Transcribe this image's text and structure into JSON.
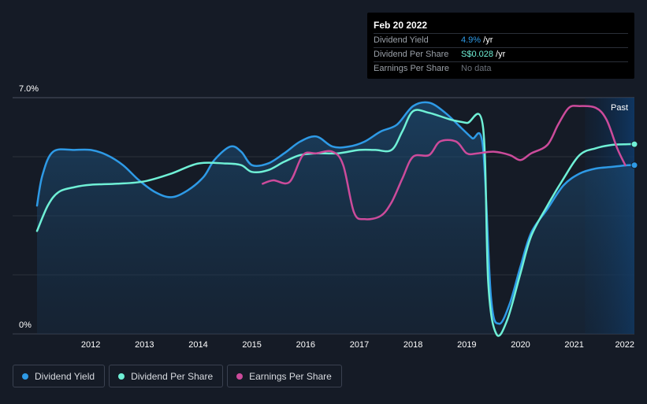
{
  "chart_data": {
    "type": "line",
    "title": "",
    "ylim": [
      0,
      7.0
    ],
    "y_tick_labels": [
      "7.0%",
      "0%"
    ],
    "x_tick_labels": [
      "2012",
      "2013",
      "2014",
      "2015",
      "2016",
      "2017",
      "2018",
      "2019",
      "2020",
      "2021",
      "2022"
    ],
    "xlim": [
      2011.0,
      2022.12
    ],
    "past_label": "Past",
    "past_start": 2021.2,
    "series": [
      {
        "name": "Dividend Yield",
        "color": "#2e9ae6",
        "filled": true,
        "points": [
          [
            2011.0,
            3.8
          ],
          [
            2011.1,
            4.7
          ],
          [
            2011.3,
            5.4
          ],
          [
            2011.7,
            5.45
          ],
          [
            2012.0,
            5.45
          ],
          [
            2012.3,
            5.3
          ],
          [
            2012.6,
            5.0
          ],
          [
            2012.9,
            4.55
          ],
          [
            2013.2,
            4.2
          ],
          [
            2013.5,
            4.05
          ],
          [
            2013.8,
            4.25
          ],
          [
            2014.1,
            4.65
          ],
          [
            2014.3,
            5.15
          ],
          [
            2014.6,
            5.55
          ],
          [
            2014.8,
            5.4
          ],
          [
            2015.0,
            5.0
          ],
          [
            2015.3,
            5.05
          ],
          [
            2015.6,
            5.35
          ],
          [
            2015.9,
            5.7
          ],
          [
            2016.2,
            5.85
          ],
          [
            2016.5,
            5.55
          ],
          [
            2016.8,
            5.55
          ],
          [
            2017.1,
            5.7
          ],
          [
            2017.4,
            6.0
          ],
          [
            2017.7,
            6.2
          ],
          [
            2018.0,
            6.75
          ],
          [
            2018.3,
            6.85
          ],
          [
            2018.6,
            6.55
          ],
          [
            2018.9,
            6.1
          ],
          [
            2019.1,
            5.8
          ],
          [
            2019.3,
            5.55
          ],
          [
            2019.45,
            1.1
          ],
          [
            2019.6,
            0.3
          ],
          [
            2019.8,
            0.9
          ],
          [
            2020.0,
            2.0
          ],
          [
            2020.2,
            3.0
          ],
          [
            2020.5,
            3.7
          ],
          [
            2020.8,
            4.4
          ],
          [
            2021.1,
            4.75
          ],
          [
            2021.4,
            4.9
          ],
          [
            2021.7,
            4.95
          ],
          [
            2022.0,
            5.0
          ],
          [
            2022.12,
            5.0
          ]
        ],
        "end_marker": true
      },
      {
        "name": "Dividend Per Share",
        "color": "#6ff0d6",
        "filled": false,
        "points": [
          [
            2011.0,
            3.05
          ],
          [
            2011.2,
            3.8
          ],
          [
            2011.4,
            4.2
          ],
          [
            2011.7,
            4.35
          ],
          [
            2012.0,
            4.42
          ],
          [
            2012.5,
            4.45
          ],
          [
            2013.0,
            4.52
          ],
          [
            2013.5,
            4.75
          ],
          [
            2014.0,
            5.05
          ],
          [
            2014.5,
            5.05
          ],
          [
            2014.8,
            5.0
          ],
          [
            2015.0,
            4.8
          ],
          [
            2015.3,
            4.85
          ],
          [
            2015.6,
            5.1
          ],
          [
            2015.9,
            5.3
          ],
          [
            2016.2,
            5.35
          ],
          [
            2016.6,
            5.35
          ],
          [
            2017.0,
            5.45
          ],
          [
            2017.3,
            5.45
          ],
          [
            2017.6,
            5.45
          ],
          [
            2017.8,
            6.0
          ],
          [
            2018.0,
            6.6
          ],
          [
            2018.3,
            6.55
          ],
          [
            2018.7,
            6.35
          ],
          [
            2019.0,
            6.25
          ],
          [
            2019.3,
            6.15
          ],
          [
            2019.4,
            1.5
          ],
          [
            2019.55,
            0.0
          ],
          [
            2019.75,
            0.4
          ],
          [
            2020.0,
            1.8
          ],
          [
            2020.2,
            2.9
          ],
          [
            2020.5,
            3.8
          ],
          [
            2020.8,
            4.6
          ],
          [
            2021.1,
            5.3
          ],
          [
            2021.4,
            5.5
          ],
          [
            2021.7,
            5.6
          ],
          [
            2022.0,
            5.62
          ],
          [
            2022.12,
            5.62
          ]
        ],
        "end_marker": true
      },
      {
        "name": "Earnings Per Share",
        "color": "#cc4b9b",
        "filled": false,
        "points": [
          [
            2015.2,
            4.45
          ],
          [
            2015.4,
            4.55
          ],
          [
            2015.7,
            4.5
          ],
          [
            2015.95,
            5.3
          ],
          [
            2016.2,
            5.35
          ],
          [
            2016.5,
            5.4
          ],
          [
            2016.7,
            5.0
          ],
          [
            2016.9,
            3.6
          ],
          [
            2017.1,
            3.4
          ],
          [
            2017.4,
            3.5
          ],
          [
            2017.6,
            3.9
          ],
          [
            2017.8,
            4.6
          ],
          [
            2018.0,
            5.25
          ],
          [
            2018.3,
            5.3
          ],
          [
            2018.5,
            5.7
          ],
          [
            2018.8,
            5.7
          ],
          [
            2019.0,
            5.35
          ],
          [
            2019.2,
            5.35
          ],
          [
            2019.5,
            5.4
          ],
          [
            2019.8,
            5.3
          ],
          [
            2020.0,
            5.15
          ],
          [
            2020.2,
            5.35
          ],
          [
            2020.5,
            5.6
          ],
          [
            2020.7,
            6.2
          ],
          [
            2020.9,
            6.7
          ],
          [
            2021.1,
            6.75
          ],
          [
            2021.4,
            6.7
          ],
          [
            2021.6,
            6.35
          ],
          [
            2021.8,
            5.5
          ],
          [
            2021.95,
            5.0
          ]
        ],
        "end_marker": false
      }
    ]
  },
  "tooltip": {
    "date": "Feb 20 2022",
    "rows": [
      {
        "label": "Dividend Yield",
        "value": "4.9%",
        "suffix": " /yr"
      },
      {
        "label": "Dividend Per Share",
        "value": "S$0.028",
        "suffix": " /yr"
      },
      {
        "label": "Earnings Per Share",
        "value": "No data",
        "suffix": ""
      }
    ]
  },
  "legend": [
    {
      "label": "Dividend Yield",
      "color": "#2e9ae6"
    },
    {
      "label": "Dividend Per Share",
      "color": "#6ff0d6"
    },
    {
      "label": "Earnings Per Share",
      "color": "#cc4b9b"
    }
  ]
}
